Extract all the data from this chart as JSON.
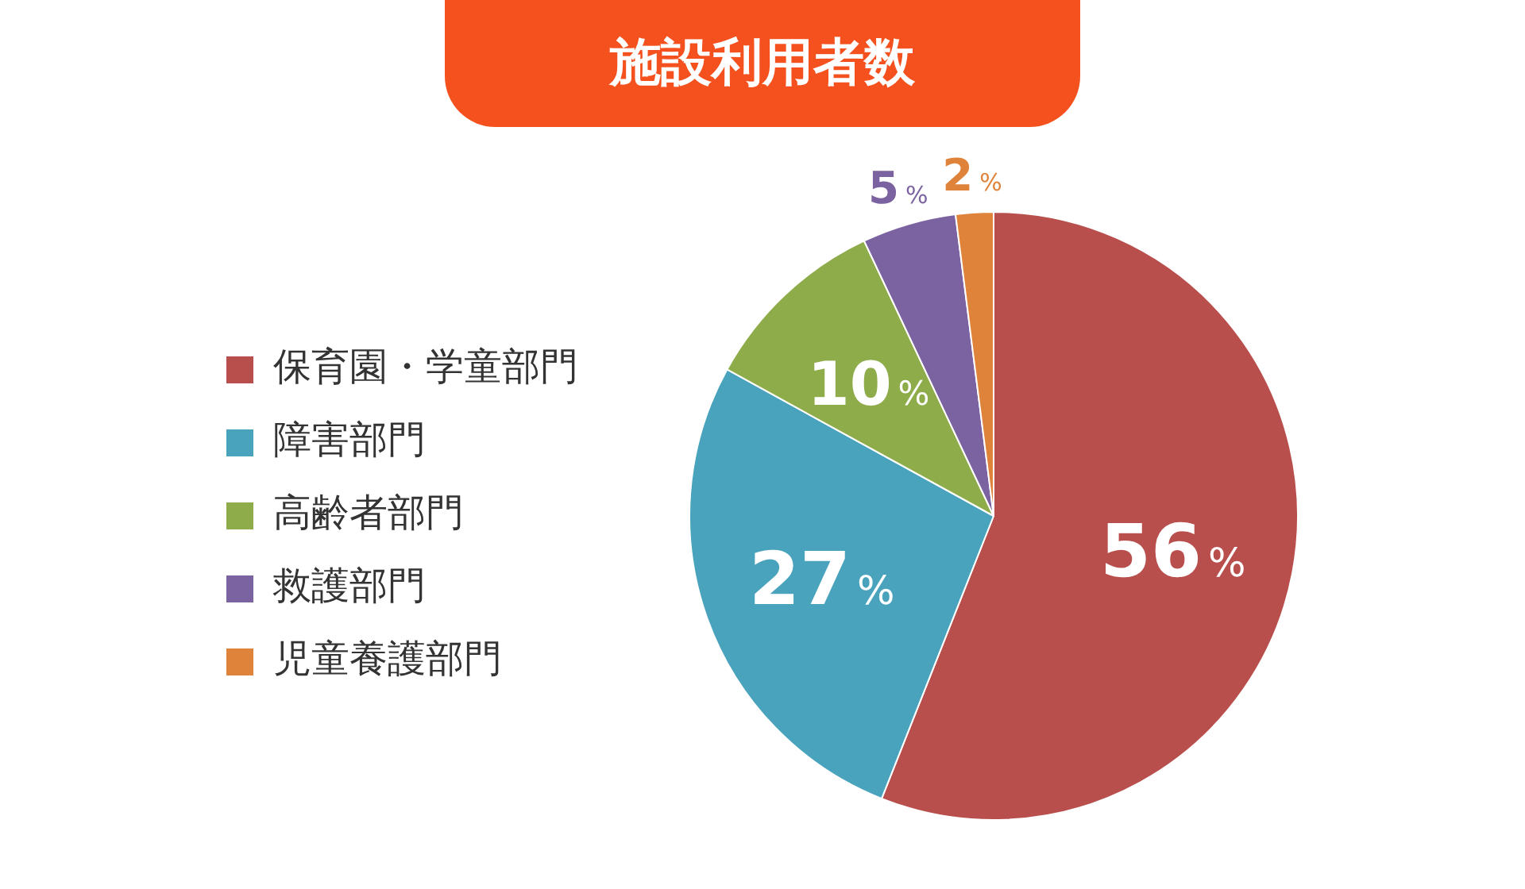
{
  "chart_data": {
    "type": "pie",
    "title": "施設利用者数",
    "categories": [
      "保育園・学童部門",
      "障害部門",
      "高齢者部門",
      "救護部門",
      "児童養護部門"
    ],
    "values": [
      56,
      27,
      10,
      5,
      2
    ],
    "colors": [
      "#b84f4c",
      "#4aa3bd",
      "#8fac4a",
      "#7b62a0",
      "#e0833a"
    ],
    "value_labels": [
      "56%",
      "27%",
      "10%",
      "5%",
      "2%"
    ],
    "legend": "left"
  }
}
